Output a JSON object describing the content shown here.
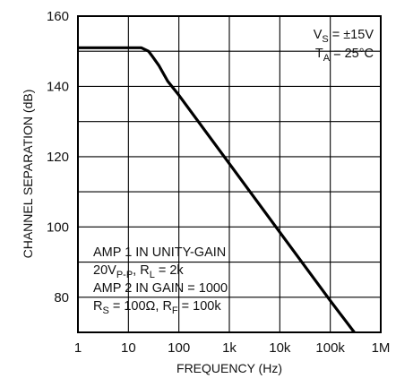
{
  "chart_data": {
    "type": "line",
    "xlabel": "FREQUENCY (Hz)",
    "ylabel": "CHANNEL SEPARATION (dB)",
    "x_scale": "log",
    "xlim": [
      1,
      1000000
    ],
    "ylim": [
      70,
      160
    ],
    "x_ticks": [
      1,
      10,
      100,
      1000,
      10000,
      100000,
      1000000
    ],
    "x_tick_labels": [
      "1",
      "10",
      "100",
      "1k",
      "10k",
      "100k",
      "1M"
    ],
    "y_ticks": [
      80,
      100,
      120,
      140,
      160
    ],
    "y_tick_labels": [
      "80",
      "100",
      "120",
      "140",
      "160"
    ],
    "grid": true,
    "series": [
      {
        "x": [
          1,
          10,
          18,
          25,
          30,
          40,
          60,
          100,
          1000,
          10000,
          100000,
          300000
        ],
        "y": [
          151,
          151,
          151,
          150,
          148.5,
          146,
          141.5,
          137.5,
          118,
          98.5,
          79,
          70
        ]
      }
    ],
    "conditions": [
      {
        "main": "V",
        "sub": "S",
        "rest": " = ±15V"
      },
      {
        "main": "T",
        "sub": "A",
        "rest": " = 25°C"
      }
    ],
    "annotation_lines": [
      [
        {
          "t": "AMP 1 IN UNITY-GAIN"
        }
      ],
      [
        {
          "t": "20V"
        },
        {
          "t": "P-P",
          "sub": true
        },
        {
          "t": ", R"
        },
        {
          "t": "L",
          "sub": true
        },
        {
          "t": " = 2k"
        }
      ],
      [
        {
          "t": "AMP 2 IN GAIN = 1000"
        }
      ],
      [
        {
          "t": "R"
        },
        {
          "t": "S",
          "sub": true
        },
        {
          "t": " = 100Ω, R"
        },
        {
          "t": "F",
          "sub": true
        },
        {
          "t": " = 100k"
        }
      ]
    ]
  }
}
